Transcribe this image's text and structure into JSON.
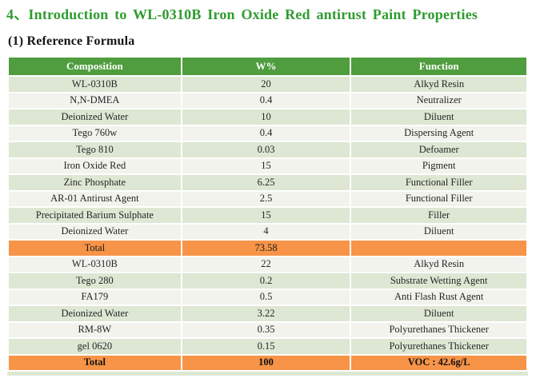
{
  "page": {
    "title": "4、Introduction to WL-0310B Iron Oxide Red antirust Paint Properties",
    "subtitle": "(1) Reference Formula"
  },
  "colors": {
    "title_green": "#2f9b2f",
    "header_green": "#4f9d3e",
    "row_tint": "#dde7d3",
    "row_plain": "#f1f3ec",
    "total_orange": "#f79447",
    "header_text": "#ffffff",
    "body_text": "#262626"
  },
  "table": {
    "headers": [
      "Composition",
      "W%",
      "Function"
    ],
    "rows": [
      {
        "composition": "WL-0310B",
        "w": "20",
        "function": "Alkyd Resin",
        "style": "tint"
      },
      {
        "composition": "N,N-DMEA",
        "w": "0.4",
        "function": "Neutralizer",
        "style": "plain"
      },
      {
        "composition": "Deionized Water",
        "w": "10",
        "function": "Diluent",
        "style": "tint"
      },
      {
        "composition": "Tego 760w",
        "w": "0.4",
        "function": "Dispersing Agent",
        "style": "plain"
      },
      {
        "composition": "Tego 810",
        "w": "0.03",
        "function": "Defoamer",
        "style": "tint"
      },
      {
        "composition": "Iron Oxide Red",
        "w": "15",
        "function": "Pigment",
        "style": "plain"
      },
      {
        "composition": "Zinc Phosphate",
        "w": "6.25",
        "function": "Functional Filler",
        "style": "tint"
      },
      {
        "composition": "AR-01 Antirust Agent",
        "w": "2.5",
        "function": "Functional Filler",
        "style": "plain"
      },
      {
        "composition": "Precipitated Barium Sulphate",
        "w": "15",
        "function": "Filler",
        "style": "tint"
      },
      {
        "composition": "Deionized Water",
        "w": "4",
        "function": "Diluent",
        "style": "plain"
      },
      {
        "composition": "Total",
        "w": "73.58",
        "function": "",
        "style": "total"
      },
      {
        "composition": "WL-0310B",
        "w": "22",
        "function": "Alkyd Resin",
        "style": "plain"
      },
      {
        "composition": "Tego 280",
        "w": "0.2",
        "function": "Substrate Wetting Agent",
        "style": "tint"
      },
      {
        "composition": "FA179",
        "w": "0.5",
        "function": "Anti Flash Rust Agent",
        "style": "plain"
      },
      {
        "composition": "Deionized Water",
        "w": "3.22",
        "function": "Diluent",
        "style": "tint"
      },
      {
        "composition": "RM-8W",
        "w": "0.35",
        "function": "Polyurethanes Thickener",
        "style": "plain"
      },
      {
        "composition": "gel 0620",
        "w": "0.15",
        "function": "Polyurethanes Thickener",
        "style": "tint"
      },
      {
        "composition": "Total",
        "w": "100",
        "function": "VOC : 42.6g/L",
        "style": "total-bold"
      }
    ]
  }
}
